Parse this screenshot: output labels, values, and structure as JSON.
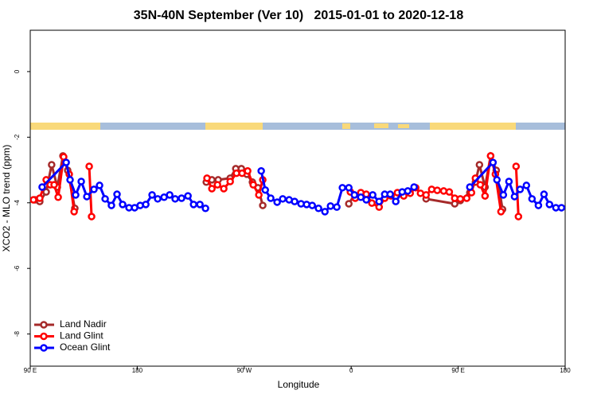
{
  "chart_data": {
    "type": "line",
    "title": "35N-40N September (Ver 10)   2015-01-01 to 2020-12-18",
    "x_label": "Longitude",
    "y_label": "XCO2 - MLO trend (ppm)",
    "xlim": [
      90,
      540
    ],
    "ylim": [
      -8.98,
      1.26
    ],
    "xticks": [
      {
        "value": 90,
        "label": "90 E"
      },
      180,
      {
        "value": 270,
        "label": "90 W"
      },
      {
        "value": 360,
        "label": "0"
      },
      {
        "value": 450,
        "label": "90 E"
      },
      {
        "value": 540,
        "label": "180"
      }
    ],
    "yticks": [
      0,
      -2,
      -4,
      -6,
      -8
    ],
    "legend": "bottom-left",
    "series": [
      {
        "name": "Land Nadir",
        "color": "#a52a2a",
        "x": [
          94.0,
          98.0,
          103.4,
          108.0,
          112.8,
          117.5,
          121.5,
          127.5,
          null,
          238.1,
          242.8,
          248.1,
          258.2,
          262.9,
          267.6,
          272.2,
          276.9,
          281.6,
          285.6,
          null,
          358.0,
          362.7,
          null,
          423.0,
          447.1,
          451.8,
          459.8,
          464.5,
          467.9,
          472.6,
          477.3,
          482.0,
          487.3
        ],
        "values": [
          -3.91,
          -3.96,
          -3.67,
          -2.84,
          -3.52,
          -2.57,
          -3.01,
          -4.17,
          null,
          -3.37,
          -3.3,
          -3.3,
          -3.25,
          -2.96,
          -2.96,
          -3.13,
          -3.37,
          -3.54,
          -4.08,
          null,
          -4.03,
          -3.76,
          null,
          -3.88,
          -4.03,
          -3.93,
          -3.69,
          -3.37,
          -2.84,
          -3.52,
          -2.57,
          -3.01,
          -4.2
        ]
      },
      {
        "name": "Land Glint",
        "color": "#ff0000",
        "x": [
          92.7,
          98.0,
          103.4,
          106.8,
          110.1,
          113.5,
          118.1,
          122.8,
          126.9,
          null,
          139.6,
          141.6,
          null,
          238.7,
          242.8,
          247.5,
          252.8,
          258.2,
          263.5,
          268.2,
          272.9,
          277.6,
          282.3,
          285.6,
          null,
          359.3,
          363.4,
          368.1,
          372.7,
          377.4,
          383.5,
          388.2,
          393.5,
          398.9,
          404.2,
          409.6,
          414.3,
          418.3,
          423.0,
          427.7,
          432.4,
          437.8,
          442.5,
          447.1,
          451.8,
          457.2,
          461.2,
          464.5,
          468.6,
          472.6,
          477.3,
          481.3,
          486.0,
          null,
          498.7,
          500.7
        ],
        "values": [
          -3.91,
          -3.86,
          -3.3,
          -3.45,
          -3.45,
          -3.83,
          -2.6,
          -3.13,
          -4.27,
          null,
          -2.89,
          -4.42,
          null,
          -3.25,
          -3.57,
          -3.45,
          -3.57,
          -3.35,
          -3.1,
          -3.1,
          -3.03,
          -3.45,
          -3.76,
          -3.3,
          null,
          -3.67,
          -3.86,
          -3.69,
          -3.74,
          -4.01,
          -4.13,
          -3.86,
          -3.79,
          -3.69,
          -3.79,
          -3.71,
          -3.54,
          -3.71,
          -3.76,
          -3.59,
          -3.62,
          -3.64,
          -3.67,
          -3.86,
          -3.88,
          -3.86,
          -3.69,
          -3.25,
          -3.45,
          -3.79,
          -2.57,
          -3.13,
          -4.27,
          null,
          -2.89,
          -4.42
        ]
      },
      {
        "name": "Ocean Glint",
        "color": "#0000ff",
        "x": [
          100.0,
          120.2,
          123.5,
          128.2,
          132.9,
          137.6,
          143.6,
          148.3,
          153.0,
          158.3,
          163.0,
          167.7,
          173.1,
          177.8,
          182.5,
          187.2,
          192.5,
          197.2,
          202.6,
          207.3,
          211.9,
          217.3,
          222.7,
          227.4,
          232.7,
          237.4,
          null,
          284.3,
          287.7,
          292.3,
          297.7,
          302.4,
          307.8,
          312.4,
          317.8,
          322.5,
          327.2,
          332.5,
          337.9,
          342.6,
          347.9,
          352.6,
          358.0,
          362.7,
          368.1,
          372.7,
          378.1,
          383.5,
          388.2,
          392.8,
          397.5,
          402.9,
          407.6,
          412.9,
          null,
          459.8,
          479.3,
          482.6,
          488.0,
          492.7,
          497.4,
          502.1,
          507.4,
          512.1,
          517.5,
          522.2,
          526.8,
          532.2,
          536.9
        ],
        "values": [
          -3.52,
          -2.77,
          -3.3,
          -3.76,
          -3.35,
          -3.81,
          -3.59,
          -3.47,
          -3.88,
          -4.08,
          -3.74,
          -4.05,
          -4.15,
          -4.15,
          -4.08,
          -4.05,
          -3.76,
          -3.88,
          -3.83,
          -3.76,
          -3.88,
          -3.86,
          -3.79,
          -4.05,
          -4.05,
          -4.17,
          null,
          -3.03,
          -3.61,
          -3.86,
          -3.98,
          -3.88,
          -3.91,
          -3.96,
          -4.03,
          -4.05,
          -4.08,
          -4.17,
          -4.27,
          -4.1,
          -4.13,
          -3.54,
          -3.54,
          -3.76,
          -3.83,
          -3.91,
          -3.76,
          -3.96,
          -3.74,
          -3.74,
          -3.96,
          -3.67,
          -3.64,
          -3.52,
          null,
          -3.52,
          -2.77,
          -3.3,
          -3.76,
          -3.35,
          -3.81,
          -3.59,
          -3.47,
          -3.88,
          -4.08,
          -3.74,
          -4.05,
          -4.15,
          -4.15
        ]
      }
    ]
  }
}
